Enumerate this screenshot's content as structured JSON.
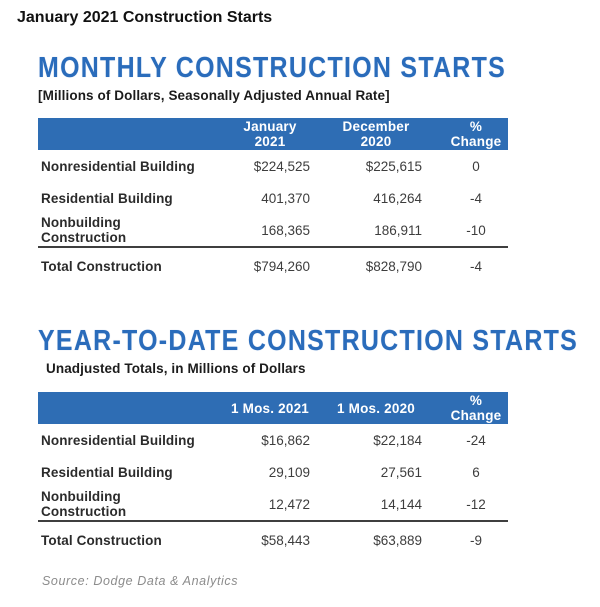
{
  "page_title": "January 2021 Construction Starts",
  "source_note": "Source: Dodge Data & Analytics",
  "colors": {
    "heading_blue": "#2a6cbb",
    "header_bar_blue": "#2e6db4",
    "label_text": "#2b2b2b",
    "value_text": "#3d3d3d",
    "total_rule": "#3f3f3f",
    "source_gray": "#8c8c8c"
  },
  "sections": [
    {
      "heading": "MONTHLY CONSTRUCTION STARTS",
      "subtitle": "[Millions of Dollars, Seasonally Adjusted Annual Rate]",
      "table": {
        "columns": [
          "",
          "January 2021",
          "December 2020",
          "% Change"
        ],
        "rows": [
          {
            "label": "Nonresidential Building",
            "values": [
              "$224,525",
              "$225,615"
            ],
            "change": "0",
            "total": false
          },
          {
            "label": "Residential Building",
            "values": [
              "401,370",
              "416,264"
            ],
            "change": "-4",
            "total": false
          },
          {
            "label": "Nonbuilding Construction",
            "values": [
              "168,365",
              "186,911"
            ],
            "change": "-10",
            "total": false
          },
          {
            "label": "Total Construction",
            "values": [
              "$794,260",
              "$828,790"
            ],
            "change": "-4",
            "total": true
          }
        ]
      }
    },
    {
      "heading": "YEAR-TO-DATE CONSTRUCTION STARTS",
      "subtitle": "Unadjusted Totals, in Millions of Dollars",
      "table": {
        "columns": [
          "",
          "1 Mos. 2021",
          "1 Mos. 2020",
          "% Change"
        ],
        "rows": [
          {
            "label": "Nonresidential Building",
            "values": [
              "$16,862",
              "$22,184"
            ],
            "change": "-24",
            "total": false
          },
          {
            "label": "Residential Building",
            "values": [
              "29,109",
              "27,561"
            ],
            "change": "6",
            "total": false
          },
          {
            "label": "Nonbuilding Construction",
            "values": [
              "12,472",
              "14,144"
            ],
            "change": "-12",
            "total": false
          },
          {
            "label": "Total Construction",
            "values": [
              "$58,443",
              "$63,889"
            ],
            "change": "-9",
            "total": true
          }
        ]
      }
    }
  ],
  "chart_data": [
    {
      "type": "table",
      "title": "MONTHLY CONSTRUCTION STARTS",
      "subtitle": "[Millions of Dollars, Seasonally Adjusted Annual Rate]",
      "columns": [
        "Category",
        "January 2021",
        "December 2020",
        "% Change"
      ],
      "rows": [
        [
          "Nonresidential Building",
          224525,
          225615,
          0
        ],
        [
          "Residential Building",
          401370,
          416264,
          -4
        ],
        [
          "Nonbuilding Construction",
          168365,
          186911,
          -10
        ],
        [
          "Total Construction",
          794260,
          828790,
          -4
        ]
      ]
    },
    {
      "type": "table",
      "title": "YEAR-TO-DATE CONSTRUCTION STARTS",
      "subtitle": "Unadjusted Totals, in Millions of Dollars",
      "columns": [
        "Category",
        "1 Mos. 2021",
        "1 Mos. 2020",
        "% Change"
      ],
      "rows": [
        [
          "Nonresidential Building",
          16862,
          22184,
          -24
        ],
        [
          "Residential Building",
          29109,
          27561,
          6
        ],
        [
          "Nonbuilding Construction",
          12472,
          14144,
          -12
        ],
        [
          "Total Construction",
          58443,
          63889,
          -9
        ]
      ]
    }
  ]
}
